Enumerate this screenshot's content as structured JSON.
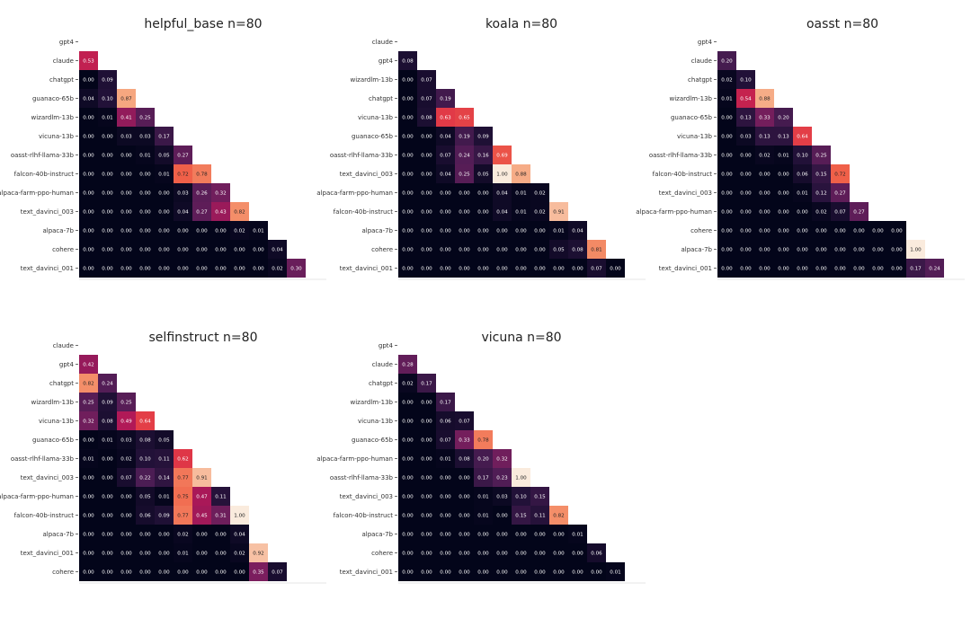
{
  "chart_data": [
    {
      "type": "heatmap",
      "title": "helpful_base n=80",
      "labels": [
        "gpt4",
        "claude",
        "chatgpt",
        "guanaco-65b",
        "wizardlm-13b",
        "vicuna-13b",
        "oasst-rlhf-llama-33b",
        "falcon-40b-instruct",
        "alpaca-farm-ppo-human",
        "text_davinci_003",
        "alpaca-7b",
        "cohere",
        "text_davinci_001"
      ],
      "rows": [
        [],
        [
          0.53
        ],
        [
          0.0,
          0.09
        ],
        [
          0.04,
          0.1,
          0.87
        ],
        [
          0.0,
          0.01,
          0.41,
          0.25
        ],
        [
          0.0,
          0.0,
          0.03,
          0.03,
          0.17
        ],
        [
          0.0,
          0.0,
          0.0,
          0.01,
          0.05,
          0.27
        ],
        [
          0.0,
          0.0,
          0.0,
          0.0,
          0.01,
          0.72,
          0.78
        ],
        [
          0.0,
          0.0,
          0.0,
          0.0,
          0.0,
          0.03,
          0.26,
          0.32
        ],
        [
          0.0,
          0.0,
          0.0,
          0.0,
          0.0,
          0.04,
          0.27,
          0.43,
          0.82
        ],
        [
          0.0,
          0.0,
          0.0,
          0.0,
          0.0,
          0.0,
          0.0,
          0.0,
          0.02,
          0.01
        ],
        [
          0.0,
          0.0,
          0.0,
          0.0,
          0.0,
          0.0,
          0.0,
          0.0,
          0.0,
          0.0,
          0.04
        ],
        [
          0.0,
          0.0,
          0.0,
          0.0,
          0.0,
          0.0,
          0.0,
          0.0,
          0.0,
          0.0,
          0.02,
          0.3
        ]
      ]
    },
    {
      "type": "heatmap",
      "title": "koala n=80",
      "labels": [
        "claude",
        "gpt4",
        "wizardlm-13b",
        "chatgpt",
        "vicuna-13b",
        "guanaco-65b",
        "oasst-rlhf-llama-33b",
        "text_davinci_003",
        "alpaca-farm-ppo-human",
        "falcon-40b-instruct",
        "alpaca-7b",
        "cohere",
        "text_davinci_001"
      ],
      "rows": [
        [],
        [
          0.08
        ],
        [
          0.0,
          0.07
        ],
        [
          0.0,
          0.07,
          0.19
        ],
        [
          0.0,
          0.08,
          0.63,
          0.65
        ],
        [
          0.0,
          0.0,
          0.04,
          0.19,
          0.09
        ],
        [
          0.0,
          0.0,
          0.07,
          0.24,
          0.16,
          0.69
        ],
        [
          0.0,
          0.0,
          0.04,
          0.25,
          0.05,
          1.0,
          0.88
        ],
        [
          0.0,
          0.0,
          0.0,
          0.0,
          0.0,
          0.04,
          0.01,
          0.02
        ],
        [
          0.0,
          0.0,
          0.0,
          0.0,
          0.0,
          0.04,
          0.01,
          0.02,
          0.91
        ],
        [
          0.0,
          0.0,
          0.0,
          0.0,
          0.0,
          0.0,
          0.0,
          0.0,
          0.01,
          0.04
        ],
        [
          0.0,
          0.0,
          0.0,
          0.0,
          0.0,
          0.0,
          0.0,
          0.0,
          0.05,
          0.08,
          0.81
        ],
        [
          0.0,
          0.0,
          0.0,
          0.0,
          0.0,
          0.0,
          0.0,
          0.0,
          0.0,
          0.0,
          0.07,
          0.0
        ]
      ]
    },
    {
      "type": "heatmap",
      "title": "oasst n=80",
      "labels": [
        "gpt4",
        "claude",
        "chatgpt",
        "wizardlm-13b",
        "guanaco-65b",
        "vicuna-13b",
        "oasst-rlhf-llama-33b",
        "falcon-40b-instruct",
        "text_davinci_003",
        "alpaca-farm-ppo-human",
        "cohere",
        "alpaca-7b",
        "text_davinci_001"
      ],
      "rows": [
        [],
        [
          0.2
        ],
        [
          0.02,
          0.1
        ],
        [
          0.01,
          0.54,
          0.88
        ],
        [
          0.0,
          0.13,
          0.33,
          0.2
        ],
        [
          0.0,
          0.03,
          0.13,
          0.13,
          0.64
        ],
        [
          0.0,
          0.0,
          0.02,
          0.01,
          0.1,
          0.25
        ],
        [
          0.0,
          0.0,
          0.0,
          0.0,
          0.06,
          0.15,
          0.72
        ],
        [
          0.0,
          0.0,
          0.0,
          0.0,
          0.01,
          0.12,
          0.27
        ],
        [
          0.0,
          0.0,
          0.0,
          0.0,
          0.0,
          0.02,
          0.07,
          0.27
        ],
        [
          0.0,
          0.0,
          0.0,
          0.0,
          0.0,
          0.0,
          0.0,
          0.0,
          0.0,
          0.0
        ],
        [
          0.0,
          0.0,
          0.0,
          0.0,
          0.0,
          0.0,
          0.0,
          0.0,
          0.0,
          0.0,
          1.0
        ],
        [
          0.0,
          0.0,
          0.0,
          0.0,
          0.0,
          0.0,
          0.0,
          0.0,
          0.0,
          0.0,
          0.17,
          0.24
        ]
      ]
    },
    {
      "type": "heatmap",
      "title": "selfinstruct n=80",
      "labels": [
        "claude",
        "gpt4",
        "chatgpt",
        "wizardlm-13b",
        "vicuna-13b",
        "guanaco-65b",
        "oasst-rlhf-llama-33b",
        "text_davinci_003",
        "alpaca-farm-ppo-human",
        "falcon-40b-instruct",
        "alpaca-7b",
        "text_davinci_001",
        "cohere"
      ],
      "rows": [
        [],
        [
          0.42
        ],
        [
          0.82,
          0.24
        ],
        [
          0.25,
          0.09,
          0.25
        ],
        [
          0.32,
          0.08,
          0.49,
          0.64
        ],
        [
          0.0,
          0.01,
          0.03,
          0.08,
          0.05
        ],
        [
          0.01,
          0.0,
          0.02,
          0.1,
          0.11,
          0.62
        ],
        [
          0.0,
          0.0,
          0.07,
          0.22,
          0.14,
          0.77,
          0.91
        ],
        [
          0.0,
          0.0,
          0.0,
          0.05,
          0.01,
          0.75,
          0.47,
          0.11
        ],
        [
          0.0,
          0.0,
          0.0,
          0.06,
          0.09,
          0.77,
          0.45,
          0.31,
          1.0
        ],
        [
          0.0,
          0.0,
          0.0,
          0.0,
          0.0,
          0.02,
          0.0,
          0.0,
          0.04
        ],
        [
          0.0,
          0.0,
          0.0,
          0.0,
          0.0,
          0.01,
          0.0,
          0.0,
          0.02,
          0.92
        ],
        [
          0.0,
          0.0,
          0.0,
          0.0,
          0.0,
          0.0,
          0.0,
          0.0,
          0.0,
          0.35,
          0.07
        ]
      ]
    },
    {
      "type": "heatmap",
      "title": "vicuna n=80",
      "labels": [
        "gpt4",
        "claude",
        "chatgpt",
        "wizardlm-13b",
        "vicuna-13b",
        "guanaco-65b",
        "alpaca-farm-ppo-human",
        "oasst-rlhf-llama-33b",
        "text_davinci_003",
        "falcon-40b-instruct",
        "alpaca-7b",
        "cohere",
        "text_davinci_001"
      ],
      "rows": [
        [],
        [
          0.28
        ],
        [
          0.02,
          0.17
        ],
        [
          0.0,
          0.0,
          0.17
        ],
        [
          0.0,
          0.0,
          0.06,
          0.07
        ],
        [
          0.0,
          0.0,
          0.07,
          0.33,
          0.78
        ],
        [
          0.0,
          0.0,
          0.01,
          0.08,
          0.2,
          0.32
        ],
        [
          0.0,
          0.0,
          0.0,
          0.0,
          0.17,
          0.23,
          1.0
        ],
        [
          0.0,
          0.0,
          0.0,
          0.0,
          0.01,
          0.03,
          0.1,
          0.15
        ],
        [
          0.0,
          0.0,
          0.0,
          0.0,
          0.01,
          0.0,
          0.15,
          0.11,
          0.82
        ],
        [
          0.0,
          0.0,
          0.0,
          0.0,
          0.0,
          0.0,
          0.0,
          0.0,
          0.0,
          0.01
        ],
        [
          0.0,
          0.0,
          0.0,
          0.0,
          0.0,
          0.0,
          0.0,
          0.0,
          0.0,
          0.0,
          0.06
        ],
        [
          0.0,
          0.0,
          0.0,
          0.0,
          0.0,
          0.0,
          0.0,
          0.0,
          0.0,
          0.0,
          0.0,
          0.01
        ]
      ]
    }
  ]
}
